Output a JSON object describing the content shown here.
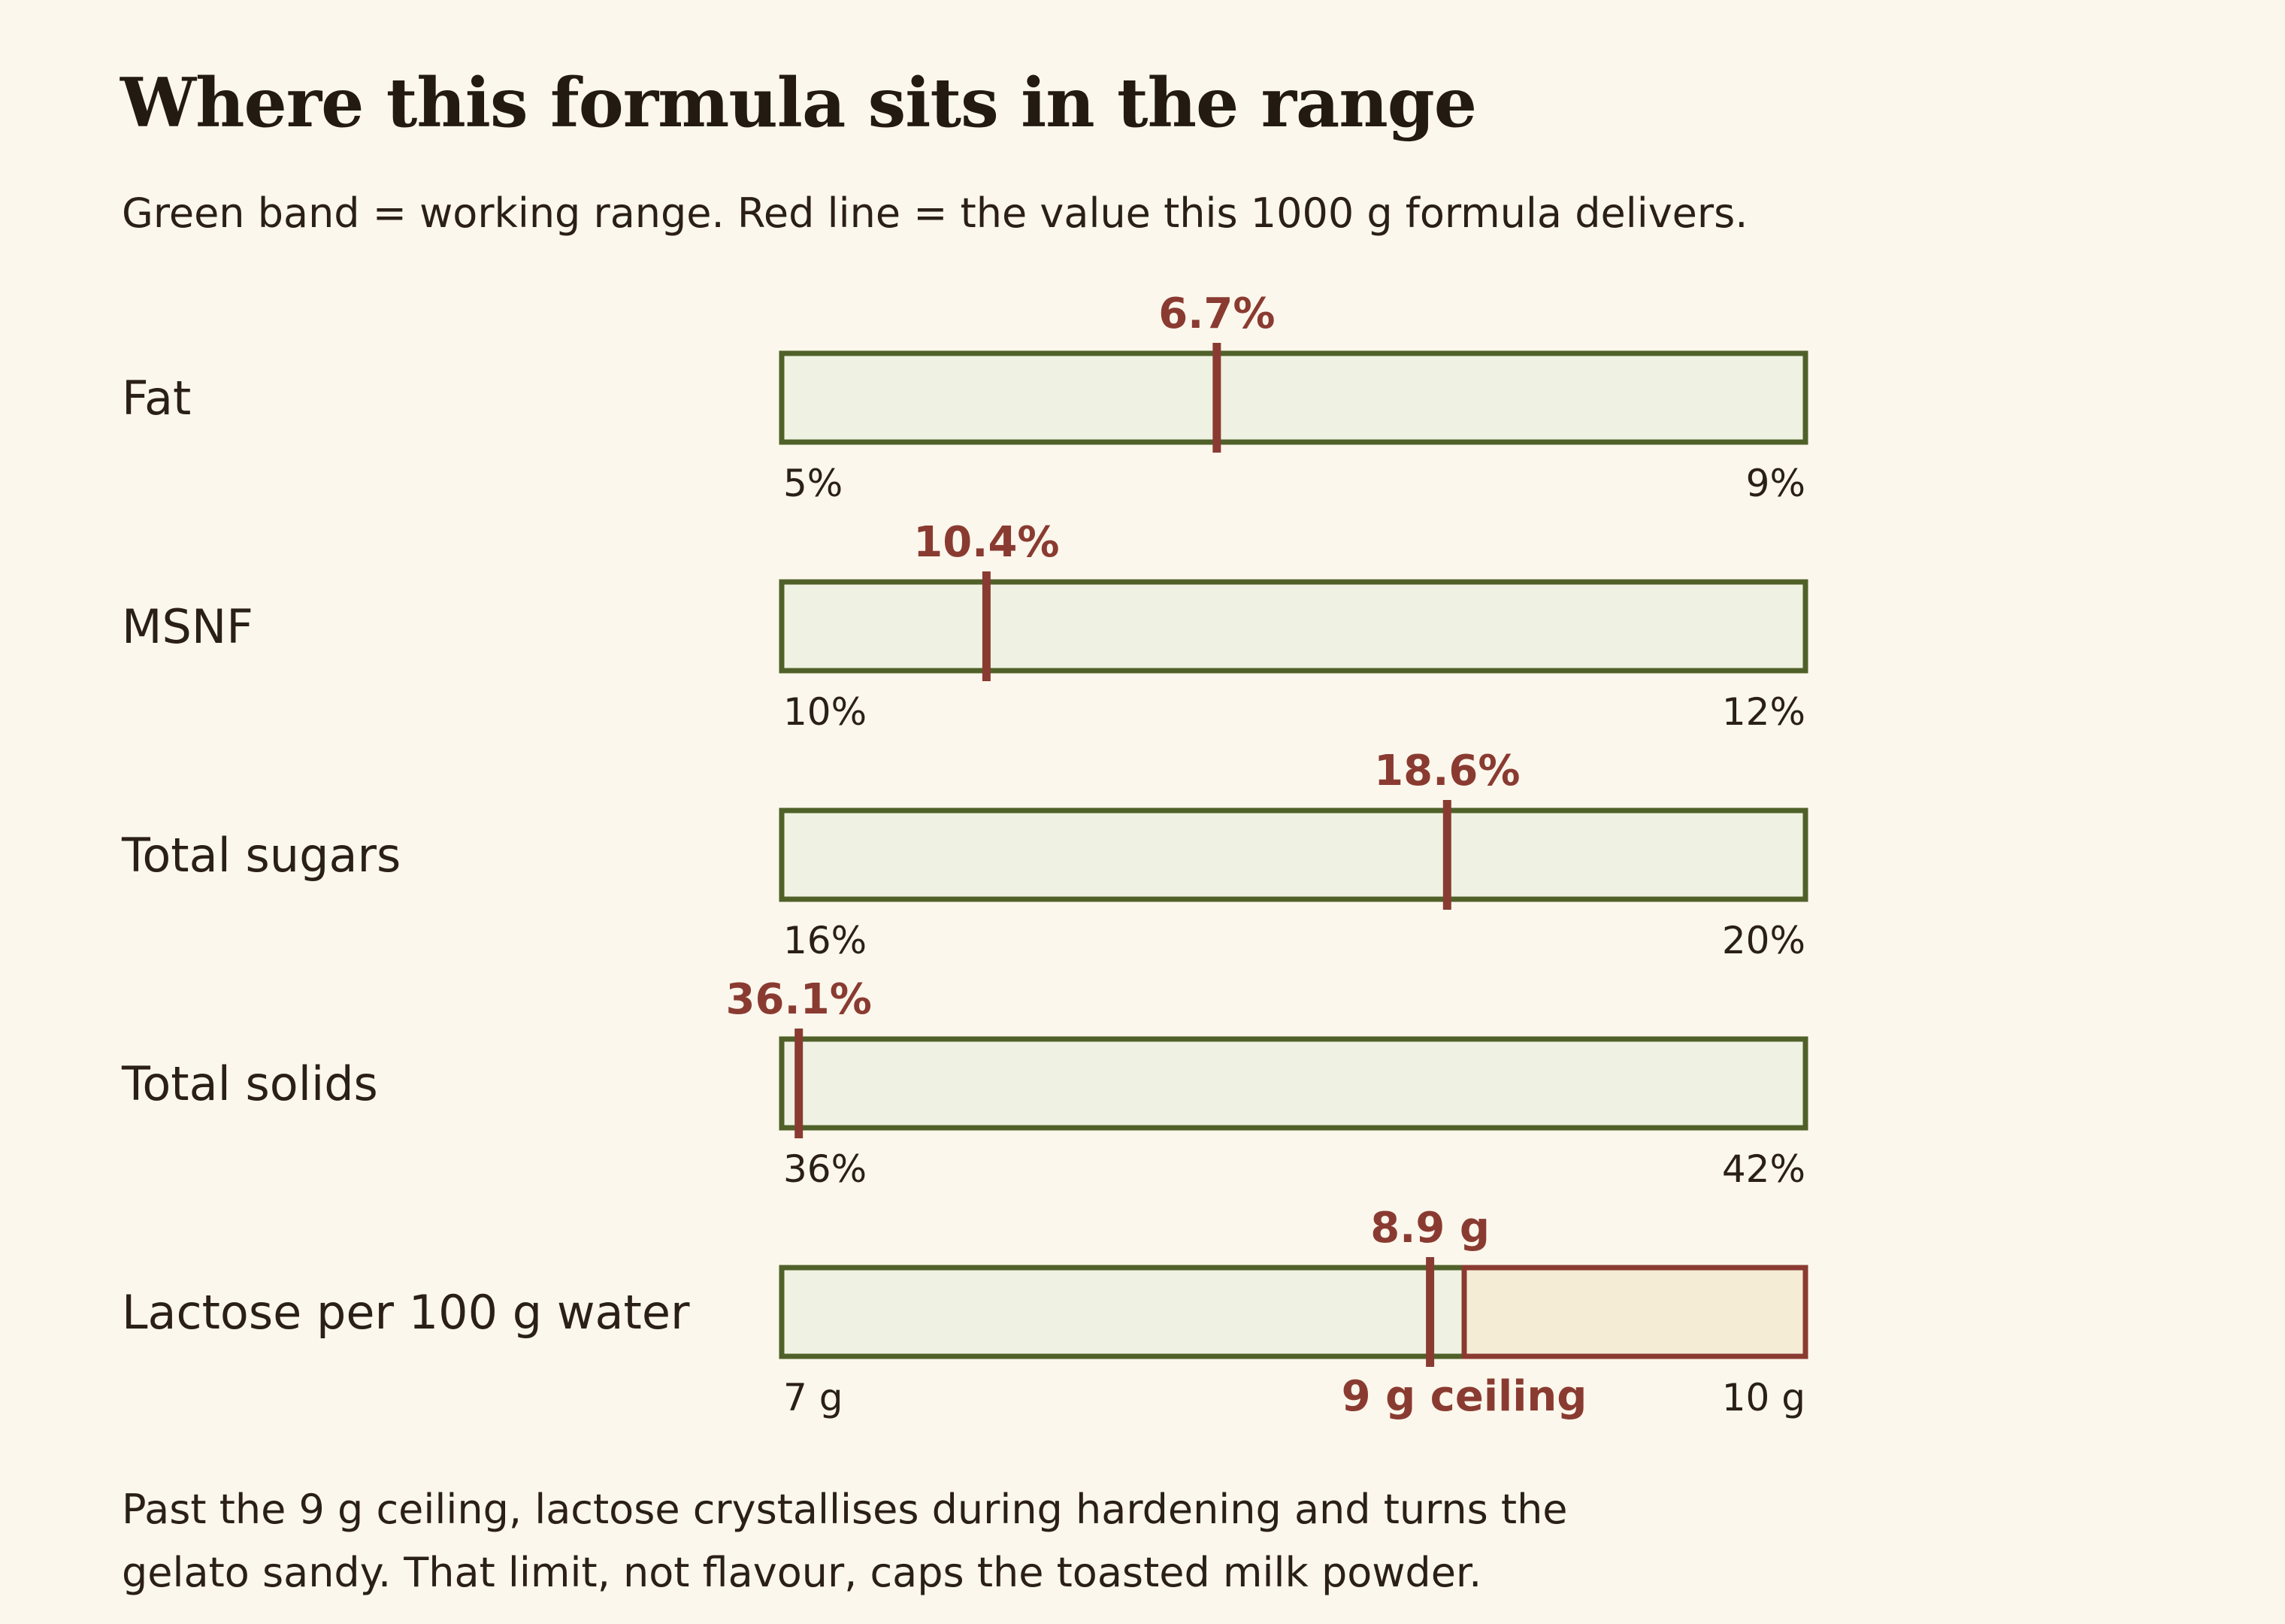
{
  "title": "Where this formula sits in the range",
  "subtitle": "Green band = working range. Red line = the value this 1000 g formula delivers.",
  "note": "Past the 9 g ceiling, lactose crystallises during hardening and turns the gelato sandy. That limit, not flavour, caps the toasted milk powder.",
  "colors": {
    "band_fill": "#eff2e2",
    "band_stroke": "#4f6129",
    "marker": "#8a3b31",
    "ceiling_fill": "#f5ecd6",
    "ceiling_stroke": "#8a3b31"
  },
  "chart_data": {
    "type": "range-band",
    "rows": [
      {
        "label": "Fat",
        "min": 5,
        "max": 9,
        "value": 6.7,
        "min_label": "5%",
        "max_label": "9%",
        "value_label": "6.7%"
      },
      {
        "label": "MSNF",
        "min": 10,
        "max": 12,
        "value": 10.4,
        "min_label": "10%",
        "max_label": "12%",
        "value_label": "10.4%"
      },
      {
        "label": "Total sugars",
        "min": 16,
        "max": 20,
        "value": 18.6,
        "min_label": "16%",
        "max_label": "20%",
        "value_label": "18.6%"
      },
      {
        "label": "Total solids",
        "min": 36,
        "max": 42,
        "value": 36.1,
        "min_label": "36%",
        "max_label": "42%",
        "value_label": "36.1%"
      },
      {
        "label": "Lactose per 100 g water",
        "min": 7,
        "max": 10,
        "value": 8.9,
        "min_label": "7 g",
        "max_label": "10 g",
        "value_label": "8.9 g",
        "ceiling": 9,
        "ceiling_label": "9 g ceiling"
      }
    ]
  }
}
